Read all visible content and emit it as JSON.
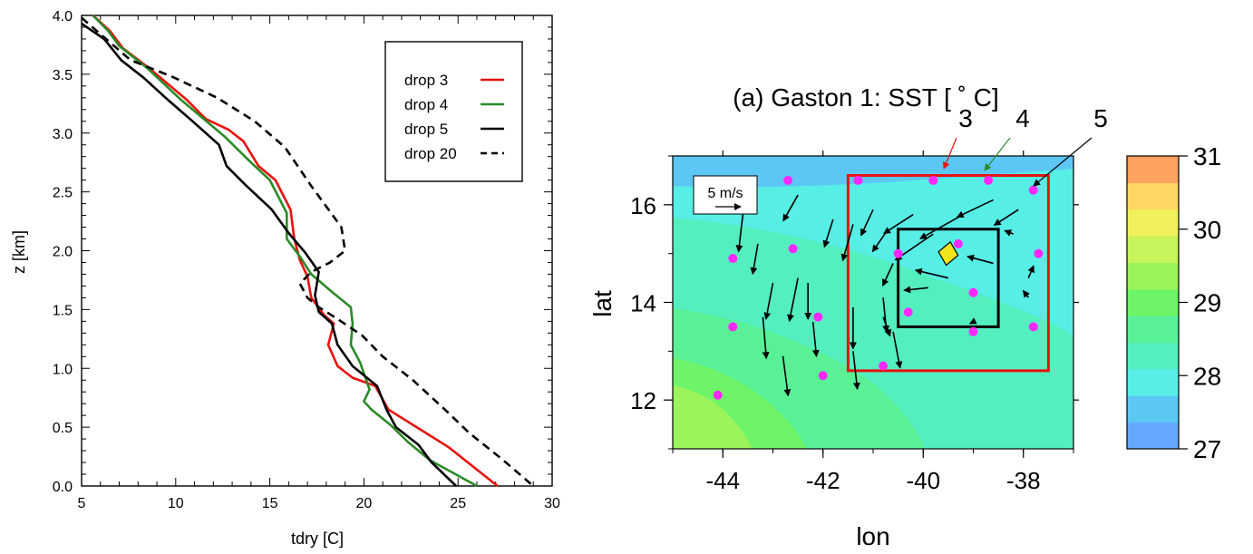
{
  "chart_data": [
    {
      "type": "line",
      "xlabel": "tdry  [C]",
      "ylabel": "z  [km]",
      "xlim": [
        5,
        30
      ],
      "ylim": [
        0,
        4
      ],
      "xticks": [
        "5",
        "10",
        "15",
        "20",
        "25",
        "30"
      ],
      "yticks": [
        "0.0",
        "0.5",
        "1.0",
        "1.5",
        "2.0",
        "2.5",
        "3.0",
        "3.5",
        "4.0"
      ],
      "legend_position": "top-right",
      "series": [
        {
          "name": "drop 3",
          "color": "#e8120f",
          "dash": "solid",
          "points": [
            [
              5.6,
              4.0
            ],
            [
              6.5,
              3.87
            ],
            [
              7.2,
              3.72
            ],
            [
              8.6,
              3.55
            ],
            [
              10.6,
              3.28
            ],
            [
              11.6,
              3.12
            ],
            [
              12.8,
              3.03
            ],
            [
              13.6,
              2.93
            ],
            [
              14.4,
              2.72
            ],
            [
              15.3,
              2.6
            ],
            [
              16.1,
              2.35
            ],
            [
              16.3,
              2.1
            ],
            [
              16.6,
              1.92
            ],
            [
              17.0,
              1.78
            ],
            [
              17.2,
              1.6
            ],
            [
              17.9,
              1.45
            ],
            [
              18.4,
              1.38
            ],
            [
              18.1,
              1.2
            ],
            [
              18.6,
              1.02
            ],
            [
              19.4,
              0.92
            ],
            [
              20.6,
              0.85
            ],
            [
              21.3,
              0.65
            ],
            [
              22.8,
              0.5
            ],
            [
              24.5,
              0.33
            ],
            [
              27.1,
              0.0
            ]
          ]
        },
        {
          "name": "drop 4",
          "color": "#2b8a28",
          "dash": "solid",
          "points": [
            [
              5.6,
              4.0
            ],
            [
              6.4,
              3.87
            ],
            [
              7.0,
              3.74
            ],
            [
              8.5,
              3.55
            ],
            [
              10.3,
              3.28
            ],
            [
              12.6,
              2.97
            ],
            [
              13.3,
              2.86
            ],
            [
              14.0,
              2.75
            ],
            [
              15.0,
              2.6
            ],
            [
              15.9,
              2.32
            ],
            [
              15.9,
              2.1
            ],
            [
              16.6,
              1.95
            ],
            [
              17.2,
              1.8
            ],
            [
              18.3,
              1.65
            ],
            [
              19.3,
              1.52
            ],
            [
              19.4,
              1.38
            ],
            [
              19.3,
              1.2
            ],
            [
              19.8,
              1.05
            ],
            [
              20.3,
              0.82
            ],
            [
              20.0,
              0.72
            ],
            [
              20.4,
              0.65
            ],
            [
              21.4,
              0.52
            ],
            [
              22.3,
              0.38
            ],
            [
              23.5,
              0.22
            ],
            [
              26.0,
              0.0
            ]
          ]
        },
        {
          "name": "drop 5",
          "color": "#000000",
          "dash": "solid",
          "points": [
            [
              5.0,
              3.93
            ],
            [
              6.2,
              3.8
            ],
            [
              7.1,
              3.62
            ],
            [
              8.3,
              3.47
            ],
            [
              9.6,
              3.28
            ],
            [
              10.9,
              3.1
            ],
            [
              12.3,
              2.9
            ],
            [
              12.7,
              2.72
            ],
            [
              13.7,
              2.56
            ],
            [
              15.1,
              2.35
            ],
            [
              16.0,
              2.15
            ],
            [
              16.9,
              1.98
            ],
            [
              17.6,
              1.82
            ],
            [
              17.4,
              1.62
            ],
            [
              17.6,
              1.48
            ],
            [
              18.3,
              1.38
            ],
            [
              18.6,
              1.2
            ],
            [
              19.4,
              1.02
            ],
            [
              20.7,
              0.85
            ],
            [
              21.2,
              0.65
            ],
            [
              21.7,
              0.5
            ],
            [
              22.9,
              0.35
            ],
            [
              23.6,
              0.2
            ],
            [
              24.9,
              0.0
            ]
          ]
        },
        {
          "name": "drop 20",
          "color": "#000000",
          "dash": "dashed",
          "points": [
            [
              5.0,
              3.98
            ],
            [
              6.3,
              3.8
            ],
            [
              7.6,
              3.62
            ],
            [
              9.8,
              3.48
            ],
            [
              12.2,
              3.3
            ],
            [
              14.2,
              3.1
            ],
            [
              15.8,
              2.88
            ],
            [
              17.2,
              2.55
            ],
            [
              18.8,
              2.2
            ],
            [
              19.0,
              2.0
            ],
            [
              18.2,
              1.9
            ],
            [
              17.2,
              1.82
            ],
            [
              16.6,
              1.72
            ],
            [
              17.0,
              1.6
            ],
            [
              17.6,
              1.52
            ],
            [
              18.6,
              1.42
            ],
            [
              19.9,
              1.28
            ],
            [
              21.0,
              1.1
            ],
            [
              22.6,
              0.9
            ],
            [
              24.3,
              0.65
            ],
            [
              25.6,
              0.45
            ],
            [
              27.4,
              0.22
            ],
            [
              29.0,
              0.0
            ]
          ]
        }
      ]
    },
    {
      "type": "heatmap",
      "title": "(a) Gaston 1:  SST [ ˚ C]",
      "xlabel": "lon",
      "ylabel": "lat",
      "xlim": [
        -45,
        -37
      ],
      "ylim": [
        11,
        17
      ],
      "xticks": [
        "-44",
        "-42",
        "-40",
        "-38"
      ],
      "yticks": [
        "12",
        "14",
        "16"
      ],
      "colorbar": {
        "ticks": [
          "27",
          "28",
          "29",
          "30",
          "31"
        ],
        "min": 27,
        "max": 31,
        "colors": [
          "#64a9ff",
          "#5cc7f5",
          "#57eee6",
          "#54efbf",
          "#5af196",
          "#6ef468",
          "#9bf45b",
          "#c7f35b",
          "#f0f05d",
          "#ffd565",
          "#ffa15f"
        ]
      },
      "reference_vector": "5 m/s",
      "sst_bands": [
        {
          "level": 27.5,
          "color": "#5cc7f5"
        },
        {
          "level": 28.0,
          "color": "#57eee6"
        },
        {
          "level": 28.5,
          "color": "#54efbf"
        },
        {
          "level": 29.0,
          "color": "#5af196"
        },
        {
          "level": 29.5,
          "color": "#6ef468"
        },
        {
          "level": 30.0,
          "color": "#9bf45b"
        }
      ],
      "outer_box": {
        "lon": [
          -41.5,
          -37.5
        ],
        "lat": [
          12.6,
          16.6
        ],
        "color": "#e8120f"
      },
      "inner_box": {
        "lon": [
          -40.5,
          -38.5
        ],
        "lat": [
          13.5,
          15.5
        ],
        "color": "#000000"
      },
      "drops": [
        [
          -41.3,
          16.5
        ],
        [
          -39.8,
          16.5
        ],
        [
          -38.7,
          16.5
        ],
        [
          -37.8,
          16.3
        ],
        [
          -37.7,
          15.0
        ],
        [
          -37.8,
          13.5
        ],
        [
          -39.0,
          13.4
        ],
        [
          -39.0,
          14.2
        ],
        [
          -39.3,
          15.2
        ],
        [
          -40.5,
          15.0
        ],
        [
          -40.3,
          13.8
        ],
        [
          -40.8,
          12.7
        ],
        [
          -42.0,
          12.5
        ],
        [
          -42.1,
          13.7
        ],
        [
          -42.6,
          15.1
        ],
        [
          -43.8,
          14.9
        ],
        [
          -43.8,
          13.5
        ],
        [
          -44.1,
          12.1
        ],
        [
          -42.7,
          16.5
        ]
      ],
      "drop_color": "#ff28ff",
      "center_marker": {
        "lon": -39.5,
        "lat": 15.0,
        "color": "#f0e41a"
      },
      "drop_labels": [
        {
          "text": "3",
          "color": "#e8120f",
          "lon": -39.8,
          "lat": 16.5
        },
        {
          "text": "4",
          "color": "#2b8a28",
          "lon": -38.7,
          "lat": 16.5
        },
        {
          "text": "5",
          "color": "#000000",
          "lon": -37.8,
          "lat": 16.3
        }
      ],
      "vectors": [
        {
          "lon": -42.5,
          "lat": 16.2,
          "u": -1.7,
          "v": -3.0
        },
        {
          "lon": -42.5,
          "lat": 14.5,
          "u": -1.0,
          "v": -5.0
        },
        {
          "lon": -42.3,
          "lat": 14.4,
          "u": 0.0,
          "v": -4.2
        },
        {
          "lon": -43.0,
          "lat": 14.4,
          "u": -0.8,
          "v": -4.2
        },
        {
          "lon": -43.3,
          "lat": 15.2,
          "u": -0.6,
          "v": -3.5
        },
        {
          "lon": -43.6,
          "lat": 15.8,
          "u": -0.5,
          "v": -4.3
        },
        {
          "lon": -43.2,
          "lat": 13.7,
          "u": 0.4,
          "v": -4.8
        },
        {
          "lon": -42.8,
          "lat": 12.9,
          "u": 0.6,
          "v": -4.6
        },
        {
          "lon": -42.2,
          "lat": 13.6,
          "u": 0.4,
          "v": -4.0
        },
        {
          "lon": -41.8,
          "lat": 15.7,
          "u": -1.0,
          "v": -3.2
        },
        {
          "lon": -41.4,
          "lat": 13.9,
          "u": 0.0,
          "v": -4.8
        },
        {
          "lon": -41.4,
          "lat": 15.6,
          "u": -1.2,
          "v": -4.2
        },
        {
          "lon": -41.4,
          "lat": 13.0,
          "u": 0.5,
          "v": -4.4
        },
        {
          "lon": -41.0,
          "lat": 15.9,
          "u": -1.4,
          "v": -3.0
        },
        {
          "lon": -40.7,
          "lat": 15.5,
          "u": -1.8,
          "v": -2.6
        },
        {
          "lon": -40.6,
          "lat": 14.8,
          "u": -1.2,
          "v": -2.6
        },
        {
          "lon": -40.8,
          "lat": 14.1,
          "u": 0.4,
          "v": -4.0
        },
        {
          "lon": -40.6,
          "lat": 13.4,
          "u": 0.8,
          "v": -4.2
        },
        {
          "lon": -40.2,
          "lat": 15.8,
          "u": -3.4,
          "v": -2.2
        },
        {
          "lon": -39.8,
          "lat": 15.4,
          "u": -4.4,
          "v": -3.0
        },
        {
          "lon": -39.9,
          "lat": 14.3,
          "u": -2.8,
          "v": -0.3
        },
        {
          "lon": -39.5,
          "lat": 14.5,
          "u": -3.8,
          "v": 0.9
        },
        {
          "lon": -39.2,
          "lat": 15.8,
          "u": -5.0,
          "v": -2.8
        },
        {
          "lon": -38.6,
          "lat": 14.8,
          "u": -3.0,
          "v": 0.8
        },
        {
          "lon": -38.6,
          "lat": 16.1,
          "u": -4.2,
          "v": -2.0
        },
        {
          "lon": -38.1,
          "lat": 15.9,
          "u": -2.8,
          "v": -1.8
        },
        {
          "lon": -38.2,
          "lat": 15.4,
          "u": -1.0,
          "v": 0.4
        },
        {
          "lon": -37.9,
          "lat": 14.5,
          "u": 0.6,
          "v": 1.4
        },
        {
          "lon": -37.9,
          "lat": 14.1,
          "u": -0.6,
          "v": 0.8
        },
        {
          "lon": -39.0,
          "lat": 13.6,
          "u": -0.4,
          "v": -0.2
        },
        {
          "lon": -40.8,
          "lat": 13.7,
          "u": 0.8,
          "v": -2.2
        }
      ]
    }
  ]
}
